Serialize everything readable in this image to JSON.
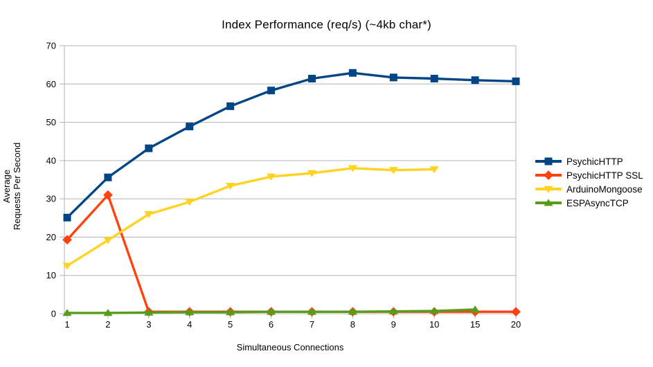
{
  "chart_data": {
    "type": "line",
    "title": "Index Performance (req/s) (~4kb char*)",
    "xlabel": "Simultaneous Connections",
    "ylabel_lines": [
      "Average",
      "Requests Per Second"
    ],
    "categories": [
      "1",
      "2",
      "3",
      "4",
      "5",
      "6",
      "7",
      "8",
      "9",
      "10",
      "15",
      "20"
    ],
    "yticks": [
      "0",
      "10",
      "20",
      "30",
      "40",
      "50",
      "60",
      "70"
    ],
    "ylim": [
      0,
      70
    ],
    "grid": "horizontal-only",
    "legend_position": "right",
    "axis_color": "#b3b3b3",
    "text_color": "#000000",
    "background_color": "#ffffff",
    "series": [
      {
        "name": "PsychicHTTP",
        "color": "#004586",
        "marker": "square",
        "values": [
          25.1,
          35.6,
          43.2,
          48.9,
          54.2,
          58.3,
          61.4,
          62.9,
          61.7,
          61.4,
          61.0,
          60.7
        ]
      },
      {
        "name": "PsychicHTTP SSL",
        "color": "#ff420e",
        "marker": "diamond",
        "values": [
          19.3,
          31.0,
          0.5,
          0.5,
          0.5,
          0.5,
          0.5,
          0.5,
          0.5,
          0.5,
          0.5,
          0.5
        ]
      },
      {
        "name": "ArduinoMongoose",
        "color": "#ffd320",
        "marker": "triangle-down",
        "values": [
          12.5,
          19.2,
          26.0,
          29.2,
          33.4,
          35.8,
          36.7,
          38.0,
          37.5,
          37.7,
          null,
          null
        ]
      },
      {
        "name": "ESPAsyncTCP",
        "color": "#579d1c",
        "marker": "triangle-up",
        "values": [
          0.2,
          0.2,
          0.3,
          0.4,
          0.4,
          0.5,
          0.5,
          0.5,
          0.6,
          0.7,
          1.1,
          null
        ]
      }
    ]
  }
}
